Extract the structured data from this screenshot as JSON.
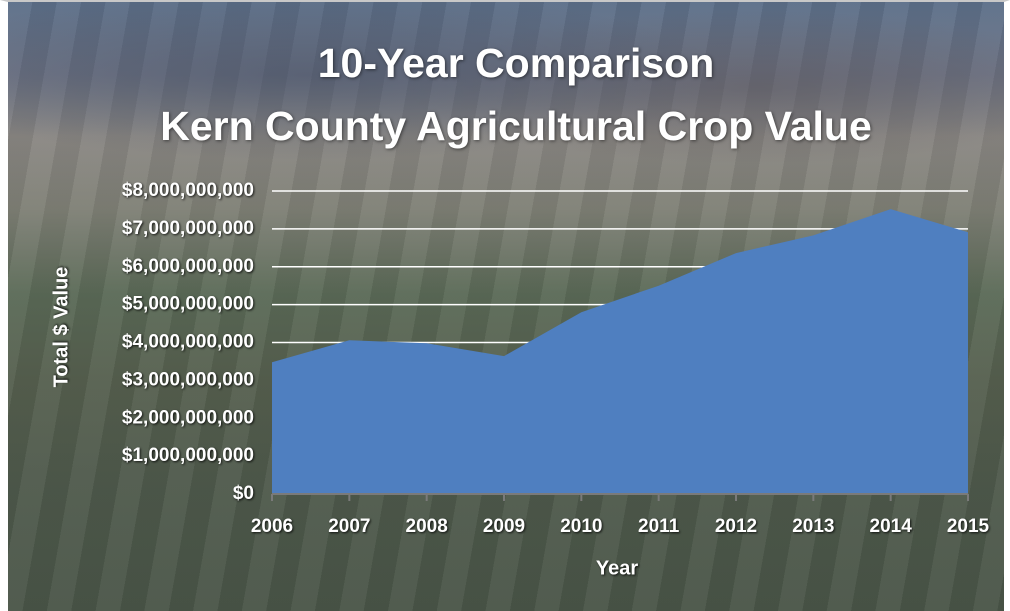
{
  "chart_data": {
    "type": "area",
    "title": "10-Year Comparison",
    "subtitle": "Kern County Agricultural Crop Value",
    "x_label": "Year",
    "y_label": "Total $ Value",
    "categories": [
      "2006",
      "2007",
      "2008",
      "2009",
      "2010",
      "2011",
      "2012",
      "2013",
      "2014",
      "2015"
    ],
    "values": [
      3480000000,
      4060000000,
      3980000000,
      3640000000,
      4800000000,
      5500000000,
      6360000000,
      6830000000,
      7520000000,
      6910000000
    ],
    "color": "#4f7fc0",
    "ylim": [
      0,
      8000000000
    ],
    "yticks": [
      {
        "value": 0,
        "label": "$0"
      },
      {
        "value": 1000000000,
        "label": "$1,000,000,000"
      },
      {
        "value": 2000000000,
        "label": "$2,000,000,000"
      },
      {
        "value": 3000000000,
        "label": "$3,000,000,000"
      },
      {
        "value": 4000000000,
        "label": "$4,000,000,000"
      },
      {
        "value": 5000000000,
        "label": "$5,000,000,000"
      },
      {
        "value": 6000000000,
        "label": "$6,000,000,000"
      },
      {
        "value": 7000000000,
        "label": "$7,000,000,000"
      },
      {
        "value": 8000000000,
        "label": "$8,000,000,000"
      }
    ],
    "grid": true
  }
}
